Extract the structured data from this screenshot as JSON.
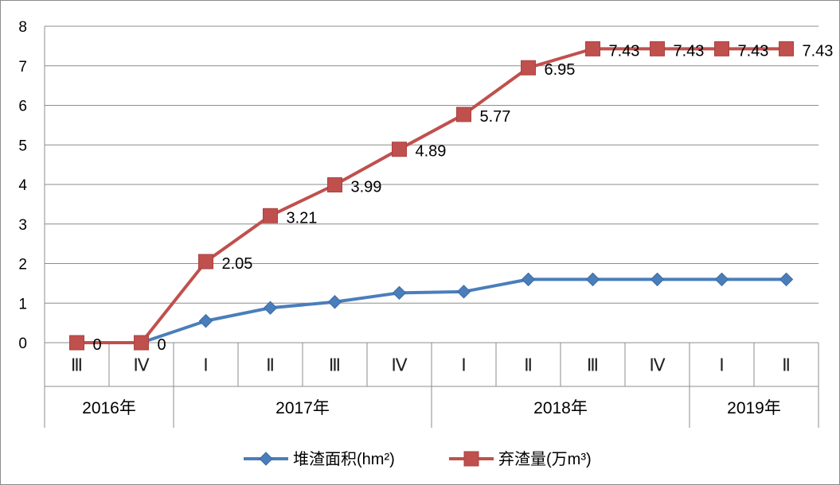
{
  "chart_data": {
    "type": "line",
    "ylim": [
      0,
      8
    ],
    "yticks": [
      "0",
      "1",
      "2",
      "3",
      "4",
      "5",
      "6",
      "7",
      "8"
    ],
    "grid": true,
    "legend_position": "bottom",
    "categories": [
      "Ⅲ",
      "Ⅳ",
      "Ⅰ",
      "Ⅱ",
      "Ⅲ",
      "Ⅳ",
      "Ⅰ",
      "Ⅱ",
      "Ⅲ",
      "Ⅳ",
      "Ⅰ",
      "Ⅱ"
    ],
    "category_groups": [
      {
        "label": "2016年",
        "span": 2
      },
      {
        "label": "2017年",
        "span": 4
      },
      {
        "label": "2018年",
        "span": 4
      },
      {
        "label": "2019年",
        "span": 2
      }
    ],
    "series": [
      {
        "name": "堆渣面积(hm²)",
        "color": "#4a7ebb",
        "marker": "diamond",
        "values": [
          0,
          0,
          0.55,
          0.88,
          1.03,
          1.26,
          1.29,
          1.6,
          1.6,
          1.6,
          1.6,
          1.6
        ],
        "show_labels": false
      },
      {
        "name": "弃渣量(万m³)",
        "color": "#c0504d",
        "marker": "square",
        "values": [
          0,
          0,
          2.05,
          3.21,
          3.99,
          4.89,
          5.77,
          6.95,
          7.43,
          7.43,
          7.43,
          7.43
        ],
        "labels": [
          "0",
          "0",
          "2.05",
          "3.21",
          "3.99",
          "4.89",
          "5.77",
          "6.95",
          "7.43",
          "7.43",
          "7.43",
          "7.43"
        ],
        "show_labels": true
      }
    ]
  }
}
